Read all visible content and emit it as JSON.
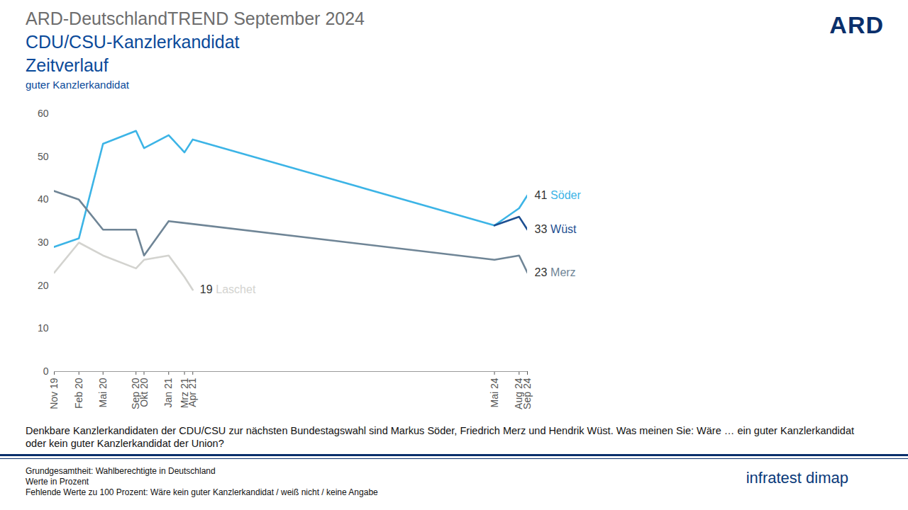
{
  "chart_data": {
    "type": "line",
    "title": "ARD-DeutschlandTREND September 2024",
    "subtitle": [
      "CDU/CSU-Kanzlerkandidat",
      "Zeitverlauf"
    ],
    "ylabel": "guter Kanzlerkandidat",
    "logo": "ARD",
    "x": [
      "2019-11",
      "2020-02",
      "2020-05",
      "2020-09",
      "2020-10",
      "2021-01",
      "2021-03",
      "2021-04",
      "2024-05",
      "2024-08",
      "2024-09"
    ],
    "xlim": [
      "2019-11",
      "2024-09"
    ],
    "xticks": [
      {
        "value": "2019-11",
        "label": "Nov 19"
      },
      {
        "value": "2020-02",
        "label": "Feb 20"
      },
      {
        "value": "2020-05",
        "label": "Mai 20"
      },
      {
        "value": "2020-09",
        "label": "Sep 20"
      },
      {
        "value": "2020-10",
        "label": "Okt 20"
      },
      {
        "value": "2021-01",
        "label": "Jan 21"
      },
      {
        "value": "2021-03",
        "label": "Mrz 21"
      },
      {
        "value": "2021-04",
        "label": "Apr 21"
      },
      {
        "value": "2024-05",
        "label": "Mai 24"
      },
      {
        "value": "2024-08",
        "label": "Aug 24"
      },
      {
        "value": "2024-09",
        "label": "Sep 24"
      }
    ],
    "ylim": [
      0,
      60
    ],
    "yticks": [
      0,
      10,
      20,
      30,
      40,
      50,
      60
    ],
    "grid": false,
    "series": [
      {
        "name": "Söder",
        "color": "#3cb4e6",
        "values": [
          29,
          31,
          53,
          56,
          52,
          55,
          51,
          54,
          34,
          38,
          41
        ]
      },
      {
        "name": "Wüst",
        "color": "#1d4f91",
        "values": [
          null,
          null,
          null,
          null,
          null,
          null,
          null,
          null,
          34,
          36,
          33
        ]
      },
      {
        "name": "Merz",
        "color": "#6f8596",
        "values": [
          42,
          40,
          33,
          33,
          27,
          35,
          null,
          null,
          26,
          27,
          23
        ]
      },
      {
        "name": "Laschet",
        "color": "#d3d3cf",
        "values": [
          23,
          30,
          27,
          24,
          26,
          27,
          22,
          19,
          null,
          null,
          null
        ]
      }
    ],
    "note": "Denkbare Kanzlerkandidaten der CDU/CSU zur nächsten Bundestagswahl sind Markus Söder, Friedrich Merz und Hendrik Wüst. Was meinen Sie: Wäre … ein guter Kanzlerkandidat oder kein guter Kanzlerkandidat der Union?",
    "footnotes": [
      "Grundgesamtheit:  Wahlberechtigte in Deutschland",
      "Werte in Prozent",
      "Fehlende Werte zu 100 Prozent: Wäre kein guter Kanzlerkandidat / weiß nicht / keine Angabe"
    ],
    "source": "infratest dimap"
  }
}
